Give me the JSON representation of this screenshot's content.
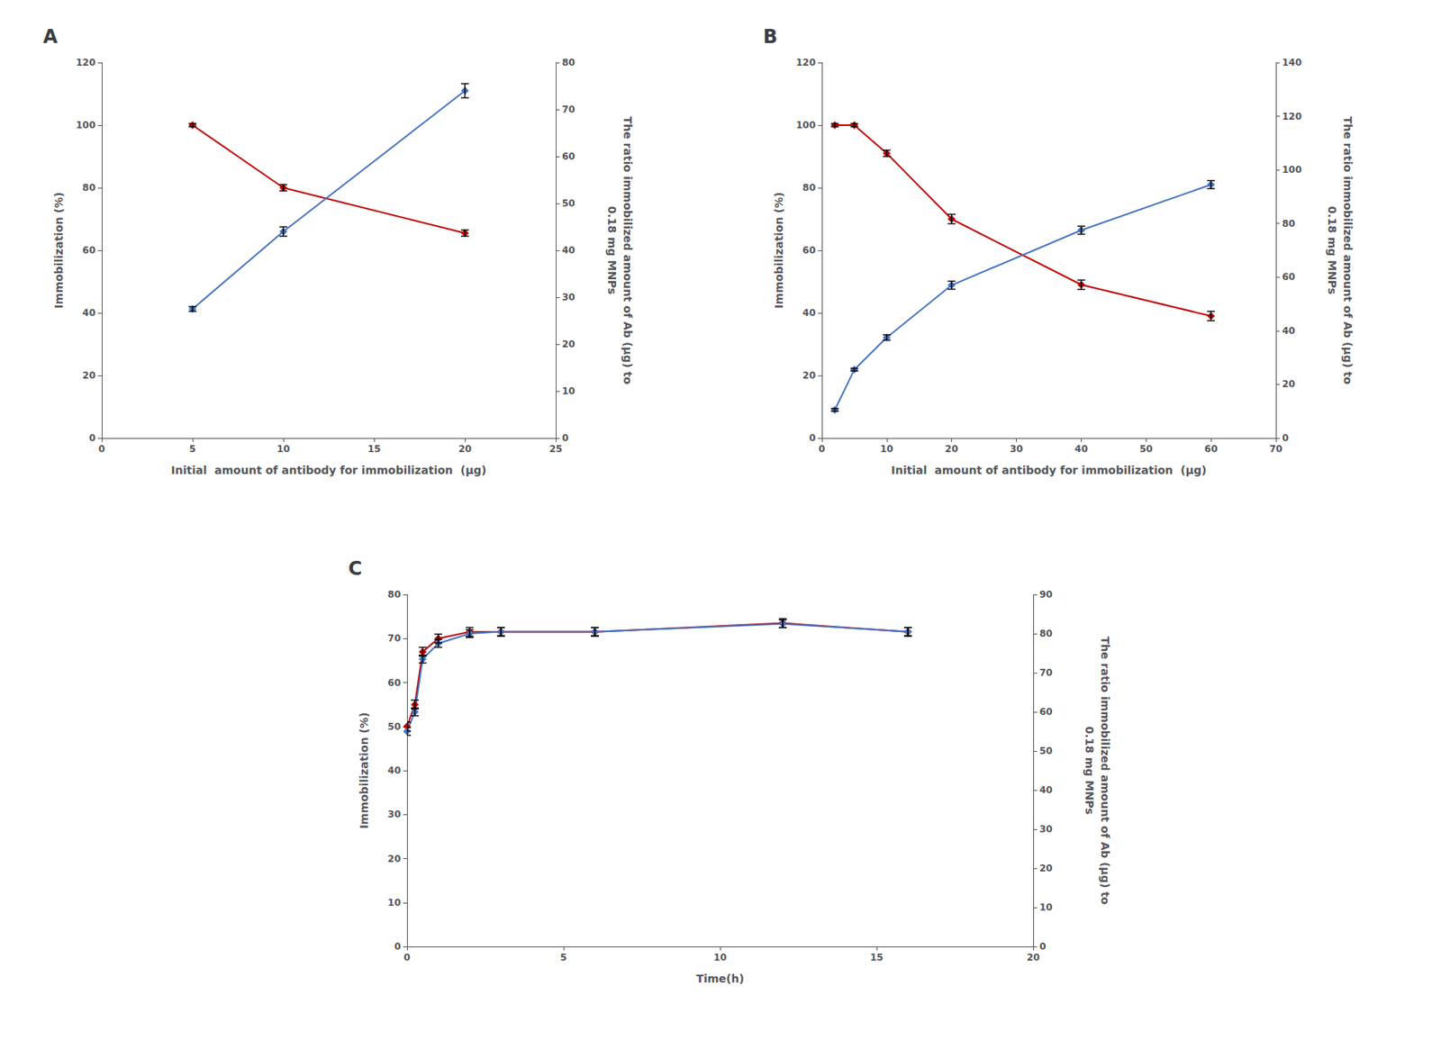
{
  "chart_data": [
    {
      "type": "line",
      "title": "A",
      "xlabel": "Initial  amount of antibody for immobilization  (μg)",
      "ylabel": "Immobilization (%)",
      "y2label": "The ratio immobilized amount of Ab (μg) to\n0.18 mg MNPs",
      "x": [
        5,
        10,
        20
      ],
      "series": [
        {
          "color": "#C00000",
          "marker": "diamond",
          "line_style": "solid",
          "axis": "y",
          "values": [
            100.0,
            80.0,
            65.5
          ],
          "yerr": [
            0.5,
            1.0,
            1.0
          ]
        },
        {
          "color": "#4472C4",
          "marker": "diamond",
          "line_style": "solid",
          "axis": "y2",
          "values": [
            27.5,
            44.0,
            74.0
          ],
          "yerr": [
            0.5,
            1.0,
            1.5
          ]
        }
      ],
      "xlim": [
        0,
        25
      ],
      "xticks": [
        0,
        5,
        10,
        15,
        20,
        25
      ],
      "ylim": [
        0,
        120
      ],
      "yticks": [
        0,
        20,
        40,
        60,
        80,
        100,
        120
      ],
      "y2lim": [
        0,
        80
      ],
      "y2ticks": [
        0,
        10,
        20,
        30,
        40,
        50,
        60,
        70,
        80
      ],
      "grid": false
    },
    {
      "type": "line",
      "title": "B",
      "xlabel": "Initial  amount of antibody for immobilization  (μg)",
      "ylabel": "Immobilization (%)",
      "y2label": "The ratio immobilized amount of Ab (μg) to\n0.18 mg MNPs",
      "x": [
        2,
        5,
        10,
        20,
        40,
        60
      ],
      "series": [
        {
          "color": "#C00000",
          "marker": "diamond",
          "line_style": "solid",
          "axis": "y",
          "values": [
            100.0,
            100.0,
            91.0,
            70.0,
            49.0,
            39.0
          ],
          "yerr": [
            0.5,
            0.5,
            1.0,
            1.5,
            1.5,
            1.5
          ]
        },
        {
          "color": "#4472C4",
          "marker": "diamond",
          "line_style": "solid",
          "axis": "y2",
          "values": [
            10.5,
            25.5,
            37.5,
            57.0,
            77.5,
            94.5
          ],
          "yerr": [
            0.5,
            0.5,
            1.0,
            1.5,
            1.5,
            1.5
          ]
        }
      ],
      "xlim": [
        0,
        70
      ],
      "xticks": [
        0,
        10,
        20,
        30,
        40,
        50,
        60,
        70
      ],
      "ylim": [
        0,
        120
      ],
      "yticks": [
        0,
        20,
        40,
        60,
        80,
        100,
        120
      ],
      "y2lim": [
        0,
        140
      ],
      "y2ticks": [
        0,
        20,
        40,
        60,
        80,
        100,
        120,
        140
      ],
      "grid": false
    },
    {
      "type": "line",
      "title": "C",
      "xlabel": "Time(h)",
      "ylabel": "Immobilization (%)",
      "y2label": "The ratio immobilized amount of Ab (μg) to\n0.18 mg MNPs",
      "x": [
        0,
        0.25,
        0.5,
        1,
        2,
        3,
        6,
        12,
        16
      ],
      "series": [
        {
          "color": "#C00000",
          "marker": "diamond",
          "line_style": "solid",
          "axis": "y",
          "values": [
            50.0,
            55.0,
            67.0,
            70.0,
            71.5,
            71.5,
            71.5,
            73.5,
            71.5
          ],
          "yerr": [
            1.0,
            1.0,
            1.0,
            1.0,
            1.0,
            1.0,
            1.0,
            1.0,
            1.0
          ]
        },
        {
          "color": "#4472C4",
          "marker": "diamond",
          "line_style": "solid",
          "axis": "y2",
          "values": [
            55.0,
            60.0,
            73.5,
            77.5,
            80.0,
            80.5,
            80.5,
            82.5,
            80.5
          ],
          "yerr": [
            1.0,
            1.0,
            1.0,
            1.0,
            1.0,
            1.0,
            1.0,
            1.0,
            1.0
          ]
        }
      ],
      "xlim": [
        0,
        20
      ],
      "xticks": [
        0,
        5,
        10,
        15,
        20
      ],
      "ylim": [
        0,
        80
      ],
      "yticks": [
        0,
        10,
        20,
        30,
        40,
        50,
        60,
        70,
        80
      ],
      "y2lim": [
        0,
        90
      ],
      "y2ticks": [
        0,
        10,
        20,
        30,
        40,
        50,
        60,
        70,
        80,
        90
      ],
      "grid": false
    }
  ]
}
